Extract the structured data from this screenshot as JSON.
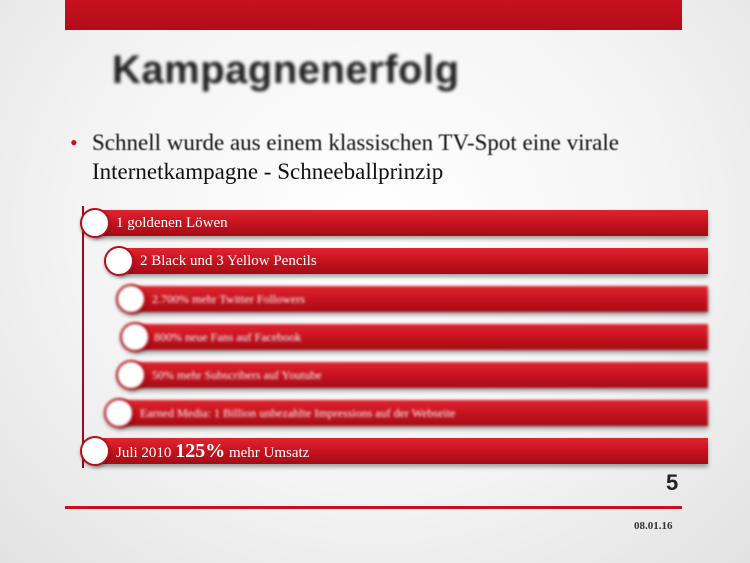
{
  "slide": {
    "title": "Kampagnenerfolg",
    "bullet_line1": "Schnell wurde aus einem klassischen TV-Spot eine virale",
    "bullet_line2": "Internetkampagne - Schneeballprinzip",
    "page_number": "5",
    "date": "08.01.16"
  },
  "items": [
    {
      "text": "1 goldenen Löwen"
    },
    {
      "text": "2 Black und 3 Yellow Pencils"
    },
    {
      "text": "2.700% mehr Twitter Followers"
    },
    {
      "text": "800% neue Fans auf Facebook"
    },
    {
      "text": "50% mehr Subscribers auf Youtube"
    },
    {
      "text": "Earned Media: 1 Billion unbezahlte Impressions auf der Webseite"
    },
    {
      "prefix": "Juli 2010",
      "highlight": "125%",
      "suffix": "mehr Umsatz"
    }
  ],
  "colors": {
    "accent": "#c8101e",
    "bar_dark": "#a40c16",
    "text": "#222222"
  }
}
